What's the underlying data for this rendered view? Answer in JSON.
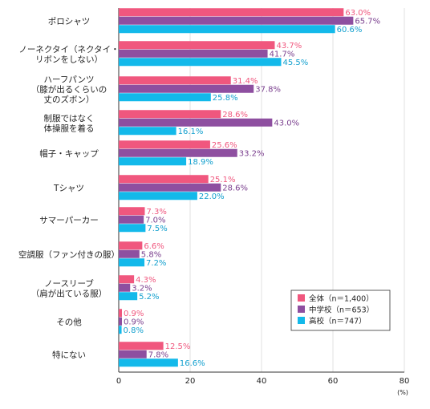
{
  "chart_data": {
    "type": "bar",
    "orientation": "horizontal",
    "categories": [
      [
        "ポロシャツ"
      ],
      [
        "ノーネクタイ（ネクタイ・",
        "リボンをしない）"
      ],
      [
        "ハーフパンツ",
        "（膝が出るくらいの",
        "丈のズボン）"
      ],
      [
        "制服ではなく",
        "体操服を着る"
      ],
      [
        "帽子・キャップ"
      ],
      [
        "Tシャツ"
      ],
      [
        "サマーパーカー"
      ],
      [
        "空調服（ファン付きの服）"
      ],
      [
        "ノースリーブ",
        "（肩が出ている服）"
      ],
      [
        "その他"
      ],
      [
        "特にない"
      ]
    ],
    "series": [
      {
        "name": "全体（n＝1,400）",
        "color": "#f0577e",
        "labelColor": "#f0577e",
        "values": [
          63.0,
          43.7,
          31.4,
          28.6,
          25.6,
          25.1,
          7.3,
          6.6,
          4.3,
          0.9,
          12.5
        ]
      },
      {
        "name": "中学校（n＝653）",
        "color": "#8e4fa0",
        "labelColor": "#7a3f8e",
        "values": [
          65.7,
          41.7,
          37.8,
          43.0,
          33.2,
          28.6,
          7.0,
          5.8,
          3.2,
          0.9,
          7.8
        ]
      },
      {
        "name": "高校（n＝747）",
        "color": "#13b9ea",
        "labelColor": "#119fce",
        "values": [
          60.6,
          45.5,
          25.8,
          16.1,
          18.9,
          22.0,
          7.5,
          7.2,
          5.2,
          0.8,
          16.6
        ]
      }
    ],
    "xlim": [
      0,
      80
    ],
    "xticks": [
      0,
      20,
      40,
      60,
      80
    ],
    "xunit": "(%)",
    "grid": true,
    "legend_position": "bottom-right"
  }
}
